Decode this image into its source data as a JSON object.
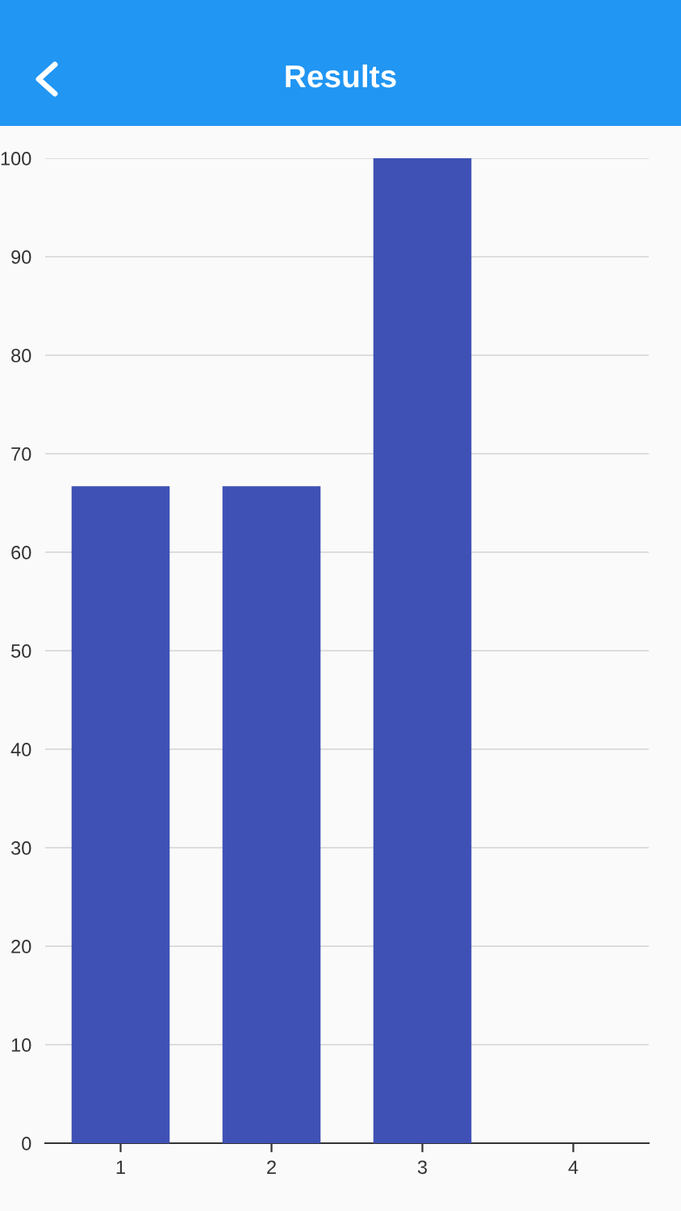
{
  "chart_data": {
    "type": "bar",
    "title": "Results",
    "categories": [
      "1",
      "2",
      "3",
      "4"
    ],
    "values": [
      66.7,
      66.7,
      100,
      0
    ],
    "color": "#3f51b5",
    "ylim": [
      0,
      100
    ],
    "yticks": [
      0,
      10,
      20,
      30,
      40,
      50,
      60,
      70,
      80,
      90,
      100
    ],
    "grid": "y"
  }
}
